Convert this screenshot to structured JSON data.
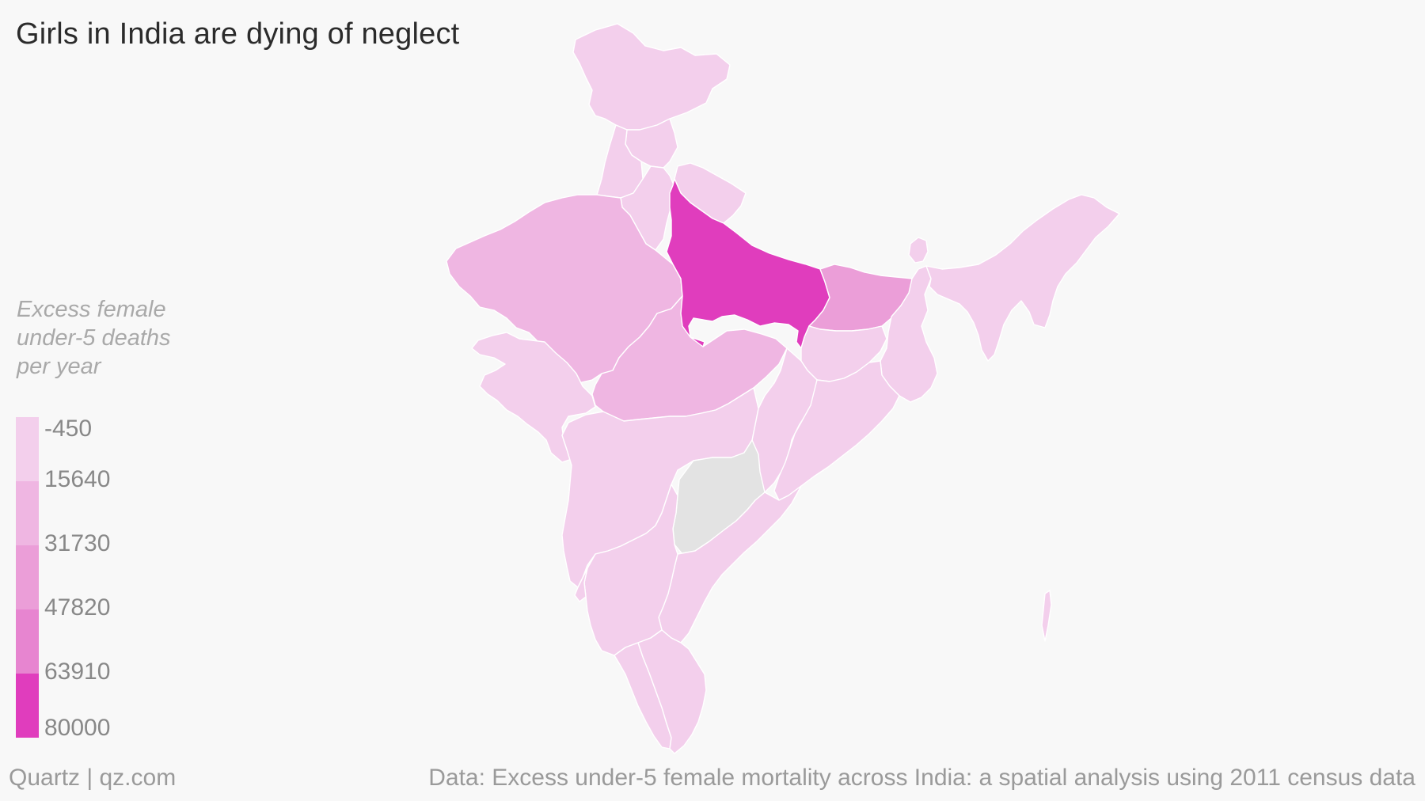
{
  "title": "Girls in India are dying of neglect",
  "legend": {
    "title_lines": [
      "Excess female",
      "under-5 deaths",
      "per year"
    ],
    "breaks": [
      "-450",
      "15640",
      "31730",
      "47820",
      "63910",
      "80000"
    ],
    "colors": [
      "#f3cfec",
      "#efb6e2",
      "#eb9ed8",
      "#e785d0",
      "#e03dbd"
    ],
    "no_data_color": "#e3e3e3"
  },
  "map_regions": [
    {
      "name": "Jammu & Kashmir",
      "class": 0
    },
    {
      "name": "Himachal Pradesh",
      "class": 0
    },
    {
      "name": "Punjab",
      "class": 0
    },
    {
      "name": "Uttarakhand",
      "class": 0
    },
    {
      "name": "Haryana",
      "class": 0
    },
    {
      "name": "Rajasthan",
      "class": 1
    },
    {
      "name": "Uttar Pradesh",
      "class": 4
    },
    {
      "name": "Bihar",
      "class": 2
    },
    {
      "name": "Gujarat",
      "class": 0
    },
    {
      "name": "Madhya Pradesh",
      "class": 1
    },
    {
      "name": "Jharkhand",
      "class": 0
    },
    {
      "name": "West Bengal",
      "class": 0
    },
    {
      "name": "Chhattisgarh",
      "class": 0
    },
    {
      "name": "Odisha",
      "class": 0
    },
    {
      "name": "Maharashtra",
      "class": 0
    },
    {
      "name": "Telangana",
      "class": null
    },
    {
      "name": "Andhra Pradesh",
      "class": 0
    },
    {
      "name": "Karnataka",
      "class": 0
    },
    {
      "name": "Goa",
      "class": 0
    },
    {
      "name": "Kerala",
      "class": 0
    },
    {
      "name": "Tamil Nadu",
      "class": 0
    },
    {
      "name": "Sikkim",
      "class": 0
    },
    {
      "name": "Northeast states",
      "class": 0
    }
  ],
  "footer": {
    "source_brand": "Quartz | qz.com",
    "data_note": "Data: Excess under-5 female mortality across India: a spatial analysis using 2011 census data"
  }
}
